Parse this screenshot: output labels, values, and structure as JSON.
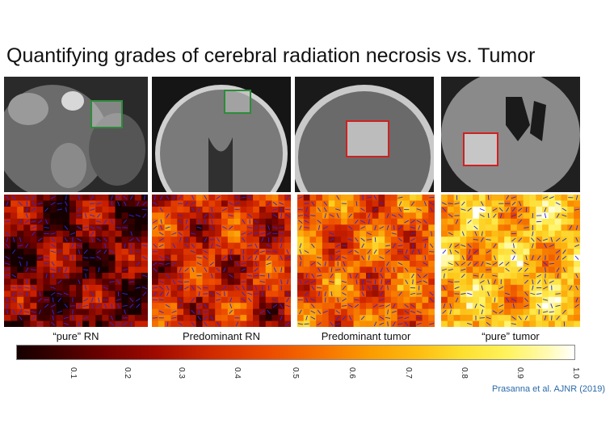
{
  "title": "Quantifying grades of cerebral radiation necrosis vs. Tumor",
  "captions": [
    "“pure” RN",
    "Predominant RN",
    "Predominant tumor",
    "“pure” tumor"
  ],
  "colorbar": {
    "ticks": [
      "0.1",
      "0.2",
      "0.3",
      "0.4",
      "0.5",
      "0.6",
      "0.7",
      "0.8",
      "0.9",
      "1.0"
    ]
  },
  "roi_colors": [
    "#2e8b3a",
    "#2e8b3a",
    "#d02020",
    "#d02020"
  ],
  "credit": "Prasanna et al.  AJNR (2019)"
}
